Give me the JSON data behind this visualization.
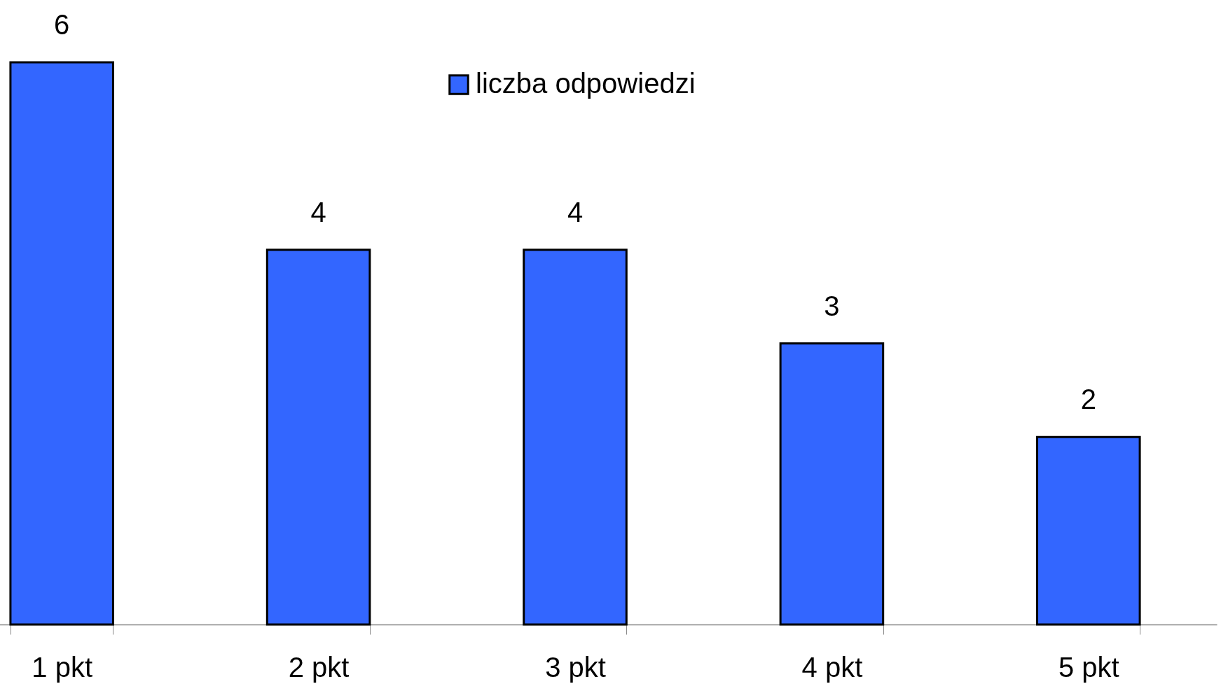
{
  "chart_data": {
    "type": "bar",
    "categories": [
      "1 pkt",
      "2 pkt",
      "3 pkt",
      "4 pkt",
      "5 pkt"
    ],
    "series": [
      {
        "name": "liczba odpowiedzi",
        "color": "#3366ff",
        "values": [
          6,
          4,
          4,
          3,
          2
        ]
      }
    ],
    "data_labels": true,
    "legend": "top",
    "grid": false
  }
}
